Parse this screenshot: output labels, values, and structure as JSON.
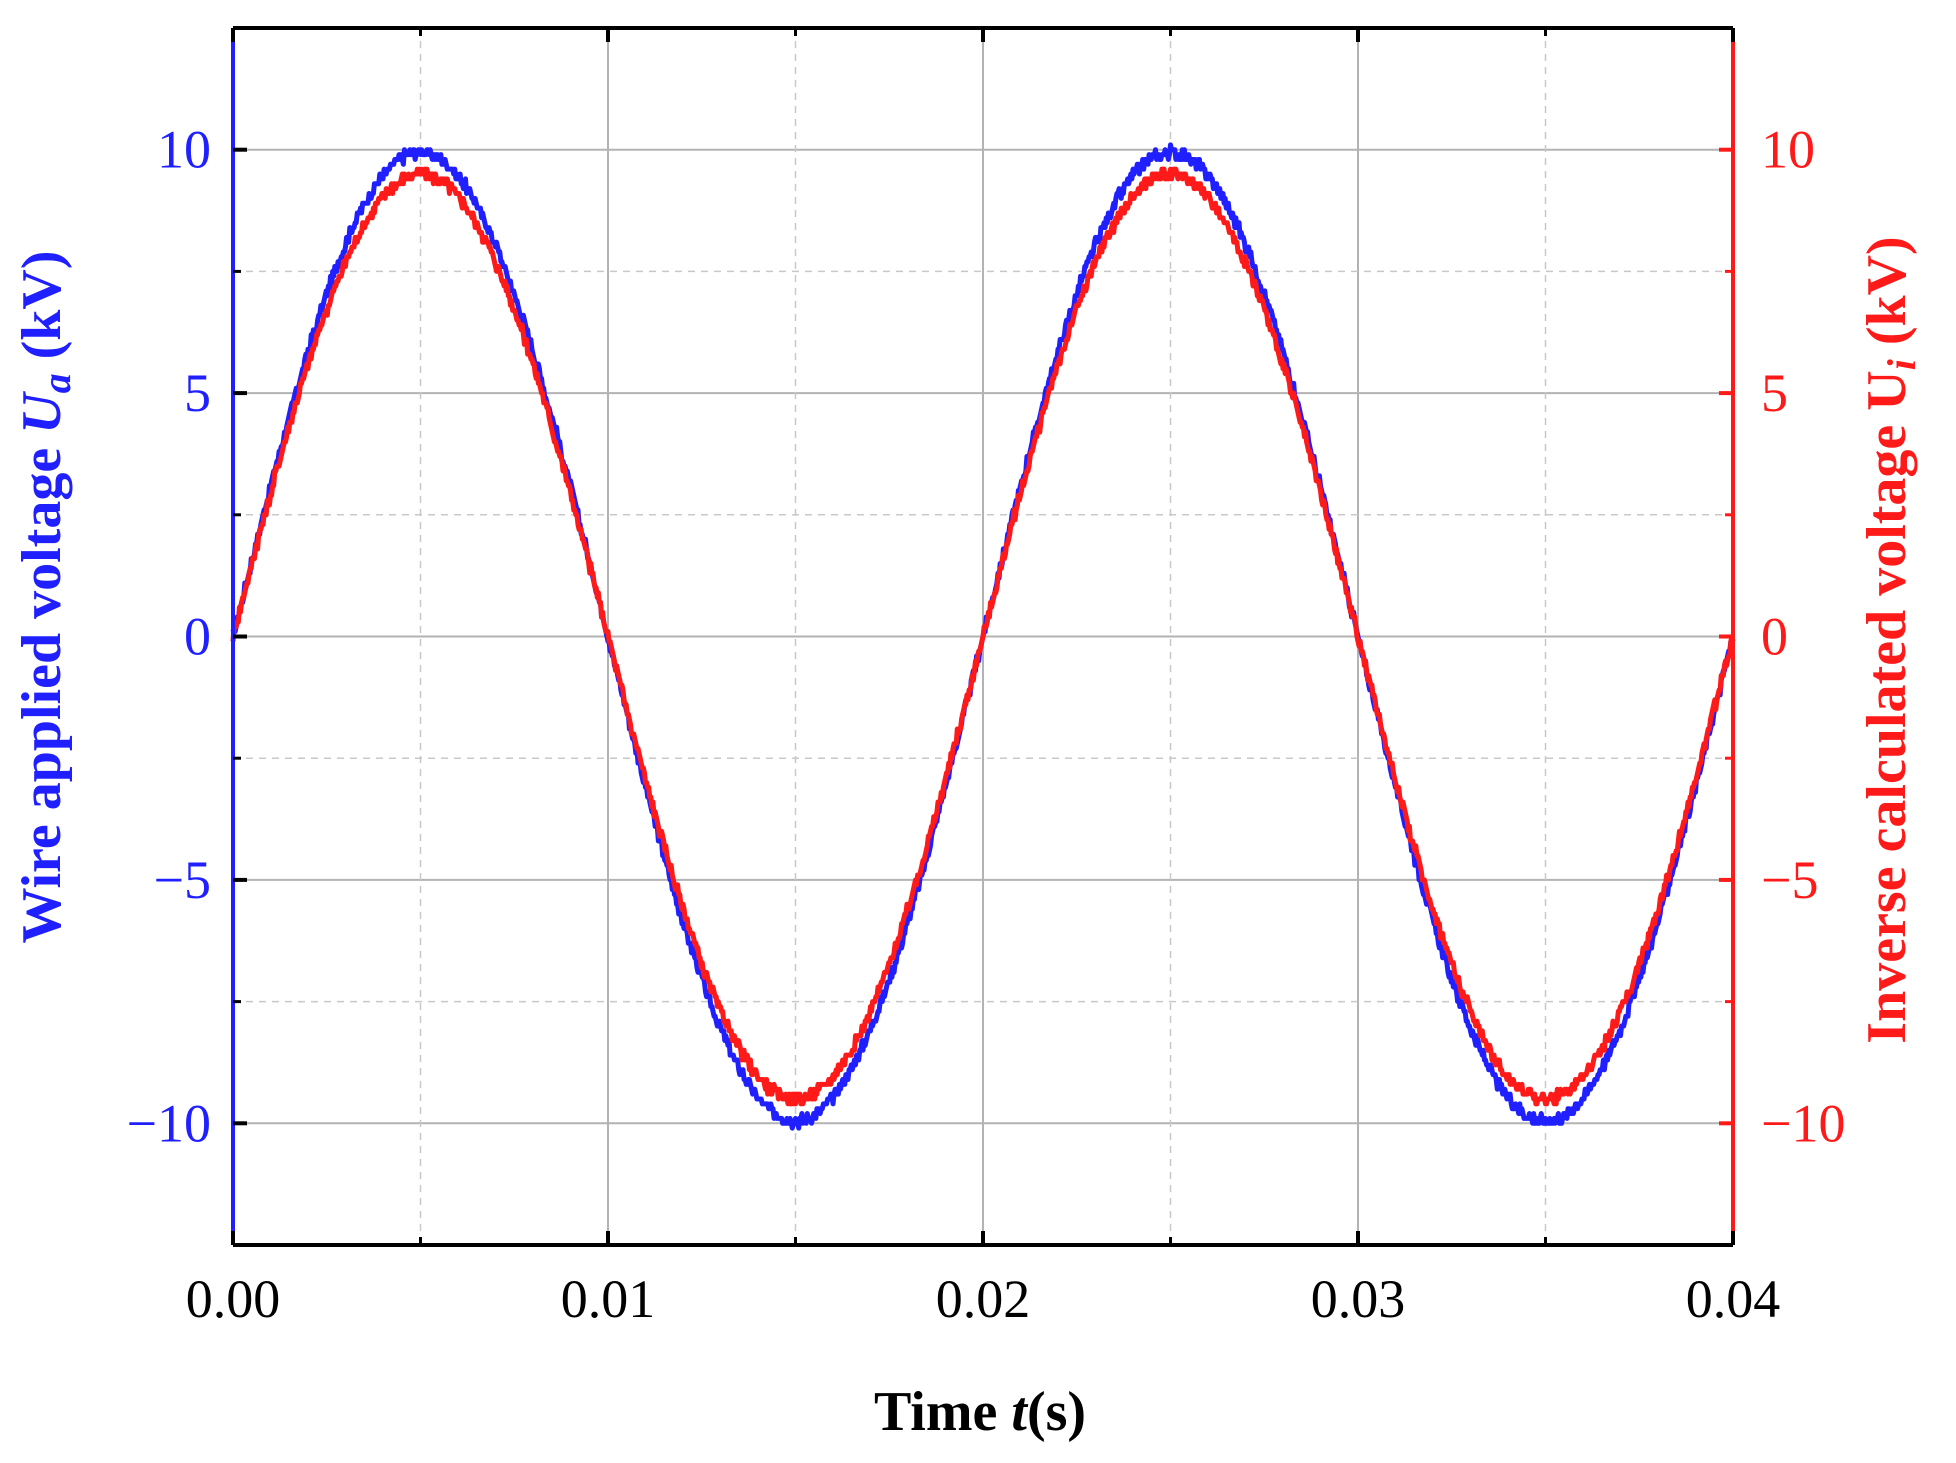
{
  "chart_data": {
    "type": "line",
    "xlabel": {
      "prefix": "Time ",
      "var": "t",
      "suffix": "(s)"
    },
    "ylabel_left": {
      "prefix": "Wire applied voltage ",
      "var": "U",
      "sub": "a",
      "suffix": " (kV)"
    },
    "ylabel_right": {
      "prefix": "Inverse calculated voltage U",
      "sub": "i",
      "suffix": " (kV)"
    },
    "xlim": [
      0,
      0.04
    ],
    "ylim": [
      -12.5,
      12.5
    ],
    "x_ticks": [
      "0.00",
      "0.01",
      "0.02",
      "0.03",
      "0.04"
    ],
    "y_ticks": [
      "10",
      "5",
      "0",
      "−5",
      "−10"
    ],
    "grid": true,
    "colors": {
      "left_axis": "#1f1fff",
      "right_axis": "#ff1a1a",
      "frame": "#000000",
      "grid": "#b3b3b3"
    },
    "series": [
      {
        "axis": "left",
        "color": "#1f1fff",
        "frequency_hz": 50,
        "amplitude_kv": 9.95,
        "x_start": 0,
        "x_end": 0.04
      },
      {
        "axis": "right",
        "color": "#ff1a1a",
        "frequency_hz": 50,
        "amplitude_kv": 9.5,
        "x_start": 0,
        "x_end": 0.04
      }
    ]
  }
}
